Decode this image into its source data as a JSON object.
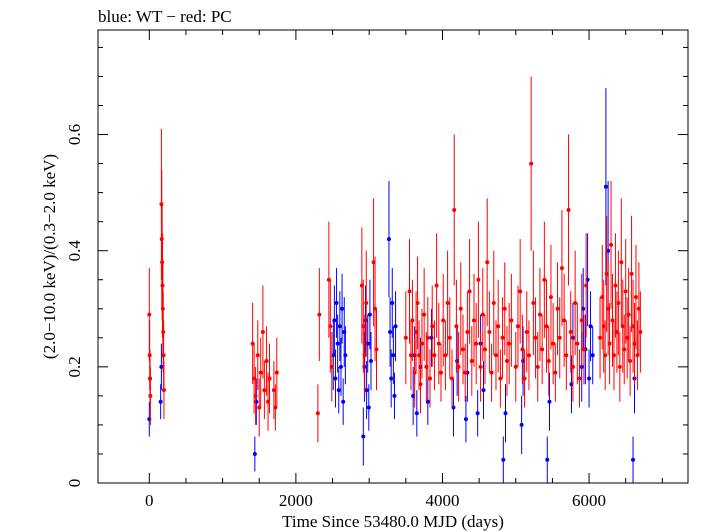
{
  "title": "blue: WT − red: PC",
  "chart_data": {
    "type": "scatter",
    "title": "blue: WT − red: PC",
    "xlabel": "Time Since 53480.0 MJD (days)",
    "ylabel": "(2.0−10.0 keV)/(0.3−2.0 keV)",
    "xlim": [
      -700,
      7350
    ],
    "ylim": [
      0,
      0.78
    ],
    "x_ticks": [
      0,
      2000,
      4000,
      6000
    ],
    "x_tick_labels": [
      "0",
      "2000",
      "4000",
      "6000"
    ],
    "y_ticks": [
      0,
      0.2,
      0.4,
      0.6
    ],
    "y_tick_labels": [
      "0",
      "0.2",
      "0.4",
      "0.6"
    ],
    "grid": false,
    "legend": "none",
    "series": [
      {
        "color": "#0000ff",
        "points": [
          [
            0,
            0.11,
            0.03
          ],
          [
            10,
            0.18,
            0.04
          ],
          [
            155,
            0.14,
            0.03
          ],
          [
            165,
            0.2,
            0.04
          ],
          [
            1440,
            0.05,
            0.03
          ],
          [
            1460,
            0.14,
            0.04
          ],
          [
            2510,
            0.22,
            0.06
          ],
          [
            2525,
            0.28,
            0.06
          ],
          [
            2540,
            0.18,
            0.05
          ],
          [
            2555,
            0.31,
            0.06
          ],
          [
            2570,
            0.24,
            0.05
          ],
          [
            2585,
            0.16,
            0.04
          ],
          [
            2600,
            0.27,
            0.06
          ],
          [
            2615,
            0.2,
            0.05
          ],
          [
            2630,
            0.3,
            0.06
          ],
          [
            2645,
            0.14,
            0.04
          ],
          [
            2660,
            0.26,
            0.06
          ],
          [
            2675,
            0.22,
            0.05
          ],
          [
            2920,
            0.08,
            0.05
          ],
          [
            2935,
            0.2,
            0.06
          ],
          [
            2950,
            0.28,
            0.06
          ],
          [
            2965,
            0.16,
            0.05
          ],
          [
            2980,
            0.24,
            0.05
          ],
          [
            2995,
            0.13,
            0.04
          ],
          [
            3010,
            0.29,
            0.06
          ],
          [
            3025,
            0.21,
            0.05
          ],
          [
            3270,
            0.42,
            0.1
          ],
          [
            3285,
            0.26,
            0.06
          ],
          [
            3300,
            0.18,
            0.05
          ],
          [
            3315,
            0.31,
            0.06
          ],
          [
            3330,
            0.22,
            0.05
          ],
          [
            3345,
            0.15,
            0.04
          ],
          [
            3360,
            0.27,
            0.06
          ],
          [
            3600,
            0.15,
            0.05
          ],
          [
            3620,
            0.22,
            0.05
          ],
          [
            3650,
            0.12,
            0.04
          ],
          [
            3700,
            0.2,
            0.05
          ],
          [
            3800,
            0.14,
            0.04
          ],
          [
            3850,
            0.25,
            0.05
          ],
          [
            4150,
            0.13,
            0.05
          ],
          [
            4200,
            0.21,
            0.06
          ],
          [
            4320,
            0.11,
            0.04
          ],
          [
            4340,
            0.19,
            0.05
          ],
          [
            4480,
            0.12,
            0.04
          ],
          [
            4520,
            0.24,
            0.05
          ],
          [
            4560,
            0.16,
            0.05
          ],
          [
            4830,
            0.04,
            0.04
          ],
          [
            4860,
            0.12,
            0.05
          ],
          [
            5080,
            0.1,
            0.05
          ],
          [
            5100,
            0.21,
            0.06
          ],
          [
            5430,
            0.04,
            0.04
          ],
          [
            5460,
            0.14,
            0.05
          ],
          [
            5760,
            0.17,
            0.05
          ],
          [
            5780,
            0.25,
            0.06
          ],
          [
            5900,
            0.2,
            0.06
          ],
          [
            5920,
            0.3,
            0.07
          ],
          [
            5950,
            0.23,
            0.06
          ],
          [
            5980,
            0.35,
            0.08
          ],
          [
            6000,
            0.18,
            0.05
          ],
          [
            6020,
            0.27,
            0.06
          ],
          [
            6050,
            0.22,
            0.05
          ],
          [
            6230,
            0.51,
            0.17
          ],
          [
            6260,
            0.4,
            0.12
          ],
          [
            6600,
            0.04,
            0.04
          ],
          [
            6620,
            0.18,
            0.06
          ]
        ]
      },
      {
        "color": "#ff0000",
        "points": [
          [
            0,
            0.29,
            0.08
          ],
          [
            5,
            0.22,
            0.06
          ],
          [
            10,
            0.18,
            0.05
          ],
          [
            15,
            0.15,
            0.05
          ],
          [
            165,
            0.48,
            0.13
          ],
          [
            170,
            0.42,
            0.12
          ],
          [
            175,
            0.38,
            0.1
          ],
          [
            180,
            0.34,
            0.09
          ],
          [
            185,
            0.3,
            0.08
          ],
          [
            190,
            0.26,
            0.07
          ],
          [
            195,
            0.22,
            0.06
          ],
          [
            200,
            0.16,
            0.05
          ],
          [
            1410,
            0.24,
            0.07
          ],
          [
            1430,
            0.18,
            0.06
          ],
          [
            1450,
            0.15,
            0.05
          ],
          [
            1480,
            0.22,
            0.06
          ],
          [
            1500,
            0.13,
            0.05
          ],
          [
            1520,
            0.19,
            0.06
          ],
          [
            1550,
            0.26,
            0.08
          ],
          [
            1570,
            0.16,
            0.05
          ],
          [
            1600,
            0.21,
            0.06
          ],
          [
            1620,
            0.14,
            0.05
          ],
          [
            1640,
            0.18,
            0.06
          ],
          [
            1700,
            0.16,
            0.05
          ],
          [
            1720,
            0.13,
            0.04
          ],
          [
            1740,
            0.19,
            0.06
          ],
          [
            2300,
            0.12,
            0.05
          ],
          [
            2320,
            0.29,
            0.08
          ],
          [
            2450,
            0.35,
            0.1
          ],
          [
            2470,
            0.27,
            0.08
          ],
          [
            2490,
            0.2,
            0.06
          ],
          [
            2900,
            0.34,
            0.1
          ],
          [
            2920,
            0.27,
            0.08
          ],
          [
            2940,
            0.22,
            0.07
          ],
          [
            2960,
            0.31,
            0.09
          ],
          [
            3060,
            0.38,
            0.11
          ],
          [
            3080,
            0.3,
            0.09
          ],
          [
            3100,
            0.23,
            0.07
          ],
          [
            3500,
            0.25,
            0.08
          ],
          [
            3550,
            0.33,
            0.09
          ],
          [
            3570,
            0.22,
            0.06
          ],
          [
            3590,
            0.28,
            0.07
          ],
          [
            3620,
            0.19,
            0.06
          ],
          [
            3640,
            0.26,
            0.07
          ],
          [
            3660,
            0.31,
            0.08
          ],
          [
            3680,
            0.22,
            0.06
          ],
          [
            3700,
            0.17,
            0.05
          ],
          [
            3720,
            0.24,
            0.06
          ],
          [
            3750,
            0.29,
            0.08
          ],
          [
            3780,
            0.2,
            0.06
          ],
          [
            3800,
            0.25,
            0.07
          ],
          [
            3830,
            0.18,
            0.05
          ],
          [
            3860,
            0.27,
            0.07
          ],
          [
            3890,
            0.22,
            0.06
          ],
          [
            3920,
            0.34,
            0.09
          ],
          [
            3950,
            0.24,
            0.07
          ],
          [
            3980,
            0.19,
            0.05
          ],
          [
            4010,
            0.28,
            0.08
          ],
          [
            4040,
            0.22,
            0.06
          ],
          [
            4070,
            0.31,
            0.09
          ],
          [
            4100,
            0.25,
            0.07
          ],
          [
            4130,
            0.18,
            0.05
          ],
          [
            4160,
            0.47,
            0.13
          ],
          [
            4190,
            0.27,
            0.08
          ],
          [
            4220,
            0.2,
            0.06
          ],
          [
            4250,
            0.3,
            0.08
          ],
          [
            4280,
            0.23,
            0.06
          ],
          [
            4310,
            0.19,
            0.05
          ],
          [
            4340,
            0.26,
            0.07
          ],
          [
            4370,
            0.33,
            0.09
          ],
          [
            4400,
            0.21,
            0.06
          ],
          [
            4430,
            0.28,
            0.08
          ],
          [
            4460,
            0.24,
            0.07
          ],
          [
            4490,
            0.35,
            0.1
          ],
          [
            4520,
            0.2,
            0.06
          ],
          [
            4550,
            0.29,
            0.08
          ],
          [
            4580,
            0.23,
            0.06
          ],
          [
            4610,
            0.38,
            0.11
          ],
          [
            4640,
            0.26,
            0.07
          ],
          [
            4670,
            0.19,
            0.05
          ],
          [
            4700,
            0.31,
            0.09
          ],
          [
            4730,
            0.22,
            0.06
          ],
          [
            4760,
            0.27,
            0.08
          ],
          [
            4790,
            0.18,
            0.05
          ],
          [
            4820,
            0.25,
            0.07
          ],
          [
            4850,
            0.3,
            0.08
          ],
          [
            4880,
            0.21,
            0.06
          ],
          [
            4910,
            0.24,
            0.07
          ],
          [
            4940,
            0.28,
            0.08
          ],
          [
            5000,
            0.2,
            0.06
          ],
          [
            5030,
            0.27,
            0.07
          ],
          [
            5060,
            0.33,
            0.09
          ],
          [
            5090,
            0.23,
            0.06
          ],
          [
            5120,
            0.18,
            0.05
          ],
          [
            5150,
            0.26,
            0.07
          ],
          [
            5180,
            0.22,
            0.06
          ],
          [
            5210,
            0.55,
            0.15
          ],
          [
            5240,
            0.31,
            0.09
          ],
          [
            5270,
            0.25,
            0.07
          ],
          [
            5300,
            0.2,
            0.06
          ],
          [
            5330,
            0.29,
            0.08
          ],
          [
            5360,
            0.23,
            0.06
          ],
          [
            5390,
            0.35,
            0.1
          ],
          [
            5420,
            0.27,
            0.08
          ],
          [
            5450,
            0.21,
            0.06
          ],
          [
            5480,
            0.32,
            0.09
          ],
          [
            5510,
            0.24,
            0.07
          ],
          [
            5540,
            0.19,
            0.05
          ],
          [
            5570,
            0.3,
            0.08
          ],
          [
            5600,
            0.25,
            0.07
          ],
          [
            5630,
            0.37,
            0.1
          ],
          [
            5660,
            0.28,
            0.08
          ],
          [
            5690,
            0.22,
            0.06
          ],
          [
            5720,
            0.47,
            0.13
          ],
          [
            5750,
            0.26,
            0.07
          ],
          [
            5780,
            0.2,
            0.06
          ],
          [
            5810,
            0.31,
            0.09
          ],
          [
            5840,
            0.24,
            0.07
          ],
          [
            5870,
            0.18,
            0.05
          ],
          [
            5900,
            0.28,
            0.08
          ],
          [
            5930,
            0.23,
            0.06
          ],
          [
            5960,
            0.34,
            0.09
          ],
          [
            6150,
            0.25,
            0.07
          ],
          [
            6180,
            0.32,
            0.09
          ],
          [
            6200,
            0.27,
            0.08
          ],
          [
            6220,
            0.22,
            0.06
          ],
          [
            6240,
            0.36,
            0.1
          ],
          [
            6260,
            0.3,
            0.08
          ],
          [
            6280,
            0.24,
            0.07
          ],
          [
            6300,
            0.41,
            0.11
          ],
          [
            6320,
            0.28,
            0.08
          ],
          [
            6340,
            0.22,
            0.06
          ],
          [
            6360,
            0.34,
            0.09
          ],
          [
            6380,
            0.26,
            0.07
          ],
          [
            6400,
            0.31,
            0.09
          ],
          [
            6420,
            0.2,
            0.06
          ],
          [
            6440,
            0.38,
            0.11
          ],
          [
            6460,
            0.27,
            0.08
          ],
          [
            6480,
            0.23,
            0.06
          ],
          [
            6500,
            0.33,
            0.09
          ],
          [
            6520,
            0.25,
            0.07
          ],
          [
            6540,
            0.29,
            0.08
          ],
          [
            6560,
            0.21,
            0.06
          ],
          [
            6580,
            0.36,
            0.1
          ],
          [
            6600,
            0.27,
            0.08
          ],
          [
            6620,
            0.24,
            0.07
          ],
          [
            6640,
            0.32,
            0.09
          ],
          [
            6660,
            0.22,
            0.06
          ],
          [
            6680,
            0.3,
            0.08
          ],
          [
            6700,
            0.26,
            0.07
          ]
        ]
      }
    ]
  }
}
